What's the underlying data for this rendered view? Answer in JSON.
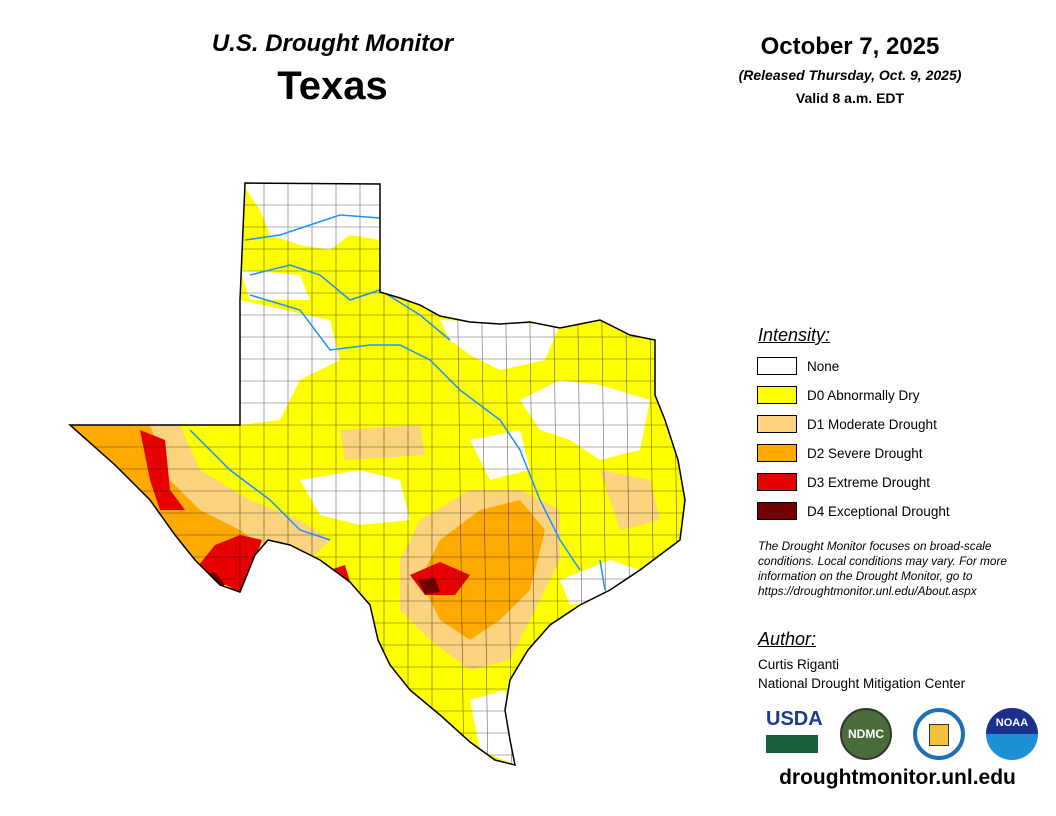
{
  "header": {
    "subtitle": "U.S. Drought Monitor",
    "title": "Texas",
    "date": "October 7, 2025",
    "released": "(Released Thursday, Oct. 9, 2025)",
    "valid": "Valid 8 a.m. EDT"
  },
  "legend": {
    "title": "Intensity:",
    "items": [
      {
        "label": "None",
        "color": "#ffffff"
      },
      {
        "label": "D0 Abnormally Dry",
        "color": "#ffff00"
      },
      {
        "label": "D1 Moderate Drought",
        "color": "#fcd37f"
      },
      {
        "label": "D2 Severe Drought",
        "color": "#ffaa00"
      },
      {
        "label": "D3 Extreme Drought",
        "color": "#e60000"
      },
      {
        "label": "D4 Exceptional Drought",
        "color": "#730000"
      }
    ]
  },
  "note": "The Drought Monitor focuses on broad-scale conditions. Local conditions may vary. For more information on the Drought Monitor, go to https://droughtmonitor.unl.edu/About.aspx",
  "author": {
    "title": "Author:",
    "name": "Curtis Riganti",
    "org": "National Drought Mitigation Center"
  },
  "logos": {
    "usda": "USDA",
    "ndmc": "NDMC",
    "noaa": "NOAA"
  },
  "footer_url": "droughtmonitor.unl.edu"
}
